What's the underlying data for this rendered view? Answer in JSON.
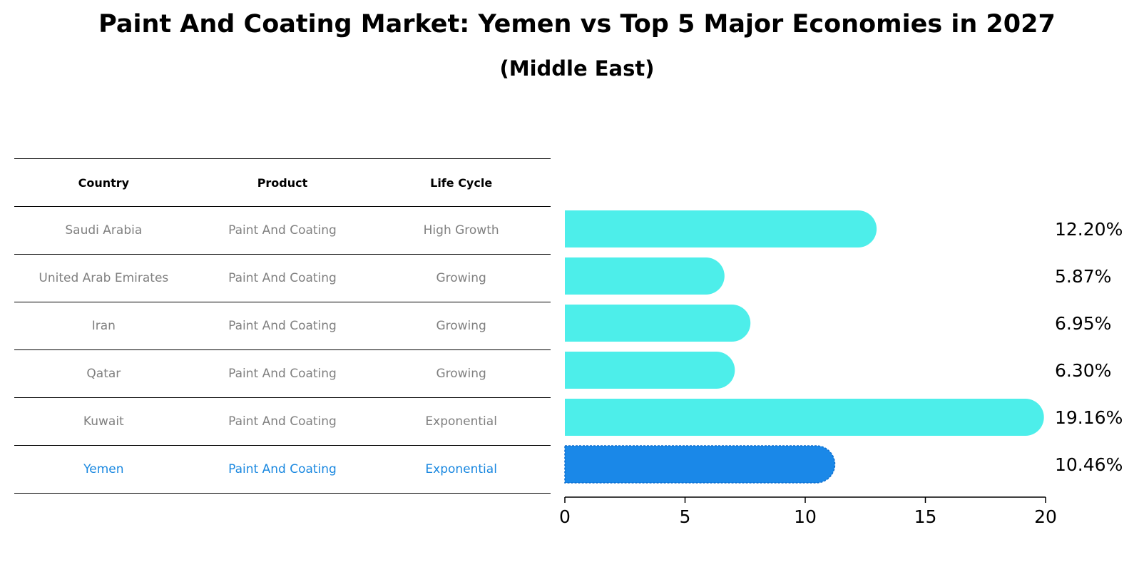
{
  "title": "Paint And Coating Market: Yemen vs Top 5 Major Economies in 2027",
  "subtitle": "(Middle East)",
  "table": {
    "headers": [
      "Country",
      "Product",
      "Life Cycle"
    ],
    "rows": [
      {
        "country": "Saudi Arabia",
        "product": "Paint And Coating",
        "life_cycle": "High Growth",
        "highlight": false
      },
      {
        "country": "United Arab Emirates",
        "product": "Paint And Coating",
        "life_cycle": "Growing",
        "highlight": false
      },
      {
        "country": "Iran",
        "product": "Paint And Coating",
        "life_cycle": "Growing",
        "highlight": false
      },
      {
        "country": "Qatar",
        "product": "Paint And Coating",
        "life_cycle": "Growing",
        "highlight": false
      },
      {
        "country": "Kuwait",
        "product": "Paint And Coating",
        "life_cycle": "Exponential",
        "highlight": false
      },
      {
        "country": "Yemen",
        "product": "Paint And Coating",
        "life_cycle": "Exponential",
        "highlight": true
      }
    ]
  },
  "colors": {
    "bar": "#4deeea",
    "highlight_bar": "#1a88e8",
    "highlight_text": "#1a88e0",
    "row_text": "#808080"
  },
  "chart_data": {
    "type": "bar",
    "orientation": "horizontal",
    "categories": [
      "Saudi Arabia",
      "United Arab Emirates",
      "Iran",
      "Qatar",
      "Kuwait",
      "Yemen"
    ],
    "values": [
      12.2,
      5.87,
      6.95,
      6.3,
      19.16,
      10.46
    ],
    "value_labels": [
      "12.20%",
      "5.87%",
      "6.95%",
      "6.30%",
      "19.16%",
      "10.46%"
    ],
    "highlight": "Yemen",
    "xlim": [
      0,
      20
    ],
    "xticks": [
      0,
      5,
      10,
      15,
      20
    ],
    "grid": false
  }
}
